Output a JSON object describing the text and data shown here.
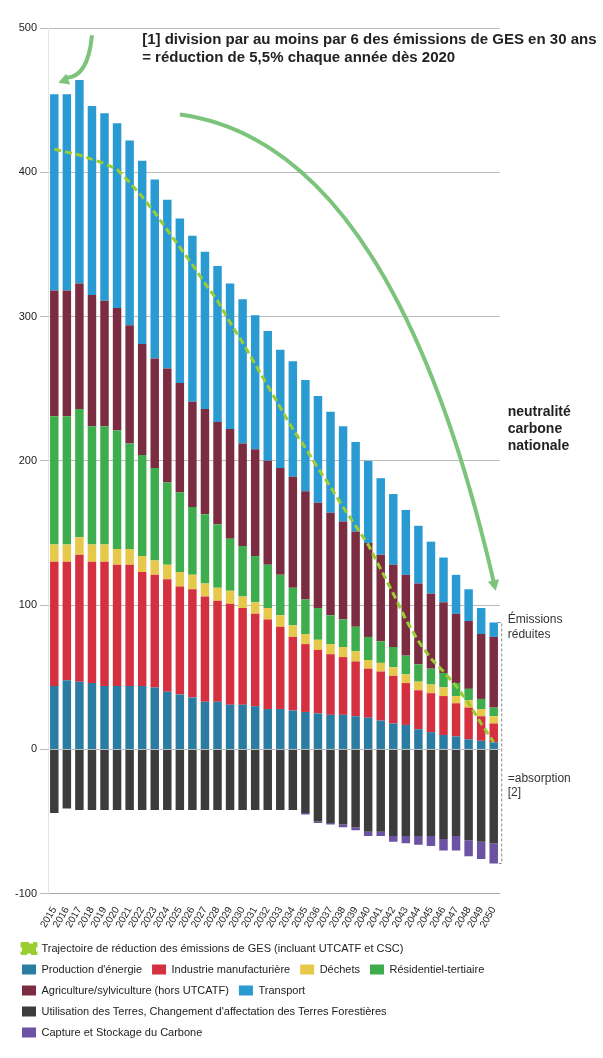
{
  "chart_data": {
    "type": "bar",
    "stacked": true,
    "annotations": [
      "[1] division par au moins par 6 des émissions de GES en 30 ans\n= réduction de 5,5% chaque année dès 2020",
      "Émissions\nréduites",
      "=absorption\n[2]",
      "neutralité\ncarbone\nnationale"
    ],
    "categories": [
      "2015",
      "2016",
      "2017",
      "2018",
      "2019",
      "2020",
      "2021",
      "2022",
      "2023",
      "2024",
      "2025",
      "2026",
      "2027",
      "2028",
      "2029",
      "2030",
      "2031",
      "2032",
      "2033",
      "2034",
      "2035",
      "2036",
      "2037",
      "2038",
      "2039",
      "2040",
      "2041",
      "2042",
      "2043",
      "2044",
      "2045",
      "2046",
      "2047",
      "2048",
      "2049",
      "2050"
    ],
    "series": [
      {
        "name": "Production d'énergie",
        "color": "#2b7ca3",
        "values": [
          44,
          48,
          47,
          46,
          44,
          44,
          44,
          44,
          43,
          40,
          38,
          36,
          33,
          33,
          31,
          31,
          30,
          28,
          28,
          27,
          26,
          25,
          24,
          24,
          23,
          22,
          20,
          18,
          17,
          14,
          12,
          10,
          9,
          7,
          6,
          5
        ]
      },
      {
        "name": "Industrie manufacturière",
        "color": "#d5303f",
        "values": [
          86,
          82,
          88,
          84,
          86,
          84,
          84,
          79,
          78,
          78,
          75,
          75,
          73,
          70,
          70,
          67,
          64,
          62,
          57,
          51,
          47,
          44,
          42,
          40,
          38,
          34,
          34,
          33,
          29,
          27,
          27,
          27,
          23,
          22,
          17,
          13
        ]
      },
      {
        "name": "Déchets",
        "color": "#e6c84a",
        "values": [
          12,
          12,
          12,
          12,
          12,
          11,
          11,
          11,
          10,
          10,
          10,
          10,
          9,
          9,
          9,
          8,
          8,
          8,
          8,
          8,
          7,
          7,
          7,
          7,
          7,
          6,
          6,
          6,
          6,
          6,
          6,
          6,
          5,
          5,
          5,
          5
        ]
      },
      {
        "name": "Résidentiel-tertiaire",
        "color": "#3ead4e",
        "values": [
          89,
          89,
          89,
          82,
          82,
          82,
          73,
          70,
          64,
          57,
          55,
          47,
          48,
          44,
          36,
          35,
          32,
          30,
          28,
          26,
          24,
          22,
          20,
          19,
          17,
          16,
          15,
          14,
          13,
          12,
          11,
          10,
          9,
          8,
          7,
          6
        ]
      },
      {
        "name": "Agriculture/sylviculture (hors UTCATF)",
        "color": "#7b2c40",
        "values": [
          87,
          87,
          87,
          91,
          87,
          85,
          82,
          77,
          76,
          79,
          76,
          73,
          73,
          71,
          76,
          71,
          74,
          72,
          74,
          77,
          75,
          73,
          71,
          68,
          66,
          65,
          60,
          57,
          56,
          56,
          52,
          49,
          48,
          47,
          45,
          49
        ]
      },
      {
        "name": "Transport",
        "color": "#2a9ad2",
        "values": [
          136,
          136,
          141,
          131,
          130,
          128,
          128,
          127,
          124,
          117,
          114,
          115,
          109,
          108,
          101,
          100,
          93,
          90,
          82,
          80,
          77,
          74,
          70,
          66,
          62,
          57,
          53,
          49,
          45,
          40,
          36,
          31,
          27,
          22,
          18,
          10
        ]
      },
      {
        "name": "Utilisation des Terres, Changement d'affectation des Terres Forestières",
        "color": "#3c3c3c",
        "values": [
          -44,
          -41,
          -42,
          -42,
          -42,
          -42,
          -42,
          -42,
          -42,
          -42,
          -42,
          -42,
          -42,
          -42,
          -42,
          -42,
          -42,
          -42,
          -42,
          -42,
          -44,
          -50,
          -51,
          -52,
          -54,
          -57,
          -57,
          -60,
          -60,
          -60,
          -60,
          -62,
          -60,
          -63,
          -64,
          -65
        ]
      },
      {
        "name": "Capture et Stockage du Carbone",
        "color": "#6b52a3",
        "values": [
          null,
          null,
          null,
          null,
          null,
          null,
          null,
          null,
          null,
          null,
          null,
          null,
          null,
          null,
          null,
          null,
          null,
          null,
          null,
          null,
          -1,
          -1,
          -1,
          -2,
          -2,
          -3,
          -3,
          -4,
          -5,
          -6,
          -7,
          -8,
          -10,
          -11,
          -12,
          -14
        ]
      },
      {
        "name": "Trajectoire de réduction des émissions de GES (incluant UTCATF et CSC)",
        "type": "line",
        "color": "#9acd32",
        "line_style": "dashed",
        "values": [
          416,
          414,
          412,
          409,
          406,
          402,
          393,
          383,
          372,
          360,
          348,
          336,
          323,
          311,
          296,
          282,
          267,
          252,
          237,
          222,
          209,
          195,
          182,
          168,
          155,
          142,
          125,
          108,
          90,
          75,
          63,
          54,
          44,
          32,
          18,
          5
        ]
      }
    ],
    "ylim": [
      -100,
      500
    ],
    "yticks": [
      -100,
      0,
      100,
      200,
      300,
      400,
      500
    ],
    "grid": "y",
    "legend": "bottom",
    "marker": "none"
  }
}
